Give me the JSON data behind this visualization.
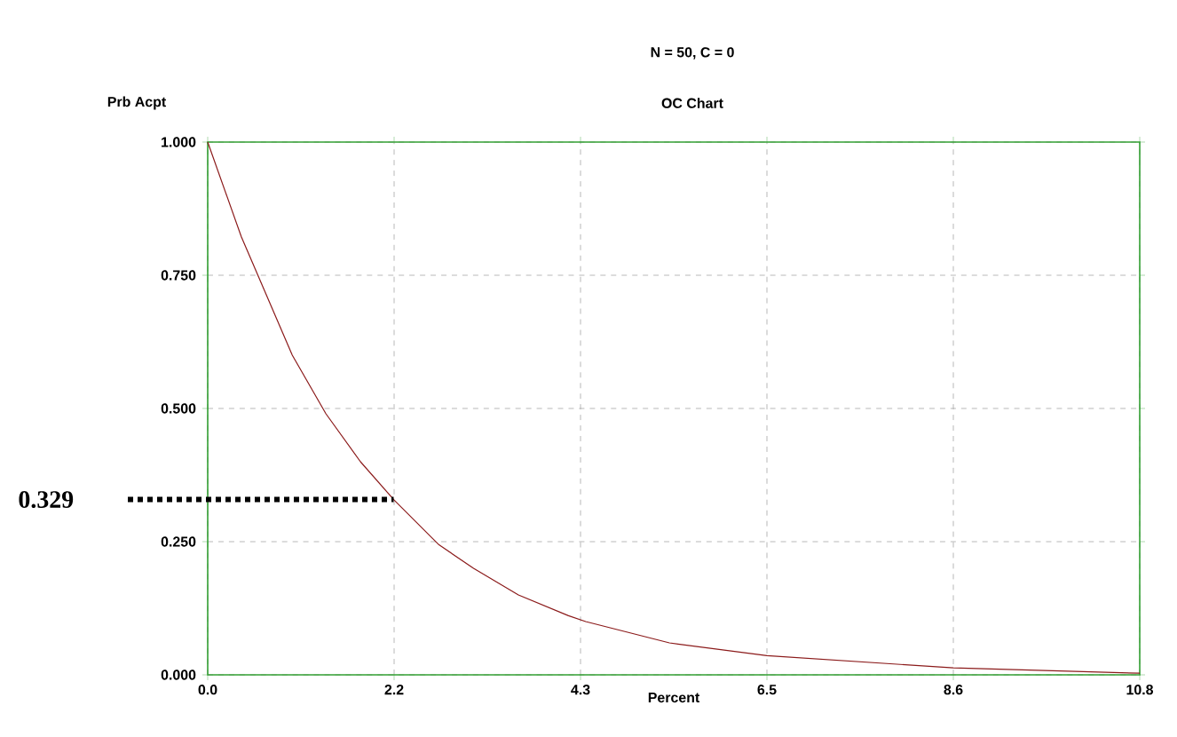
{
  "chart_data": {
    "type": "line",
    "title": "N = 50, C = 0",
    "subtitle": "OC Chart",
    "xlabel": "Percent",
    "ylabel": "Prb Acpt",
    "x": [
      0,
      0.39,
      0.98,
      1.37,
      1.77,
      2.16,
      2.68,
      3.08,
      3.6,
      4.18,
      4.38,
      5.35,
      6.48,
      8.64,
      10.8
    ],
    "series": [
      {
        "color": "#8b1a1a",
        "values": [
          1.0,
          0.822,
          0.6,
          0.49,
          0.4,
          0.328,
          0.244,
          0.2,
          0.15,
          0.111,
          0.1,
          0.06,
          0.036,
          0.013,
          0.003
        ]
      }
    ],
    "xlim": [
      0,
      10.8
    ],
    "ylim": [
      0,
      1
    ],
    "xticks": [
      {
        "value": 0,
        "label": "0.0"
      },
      {
        "value": 2.16,
        "label": "2.2"
      },
      {
        "value": 4.32,
        "label": "4.3"
      },
      {
        "value": 6.48,
        "label": "6.5"
      },
      {
        "value": 8.64,
        "label": "8.6"
      },
      {
        "value": 10.8,
        "label": "10.8"
      }
    ],
    "yticks": [
      {
        "value": 0,
        "label": "0.000"
      },
      {
        "value": 0.25,
        "label": "0.250"
      },
      {
        "value": 0.5,
        "label": "0.500"
      },
      {
        "value": 0.75,
        "label": "0.750"
      },
      {
        "value": 1,
        "label": "1.000"
      }
    ],
    "grid": true,
    "marker": "none",
    "line_style": "solid",
    "ref_lines": [
      {
        "axis": "y",
        "value": 0.329,
        "label": "0.329",
        "line_style": "dotted",
        "color": "#000000"
      }
    ]
  }
}
